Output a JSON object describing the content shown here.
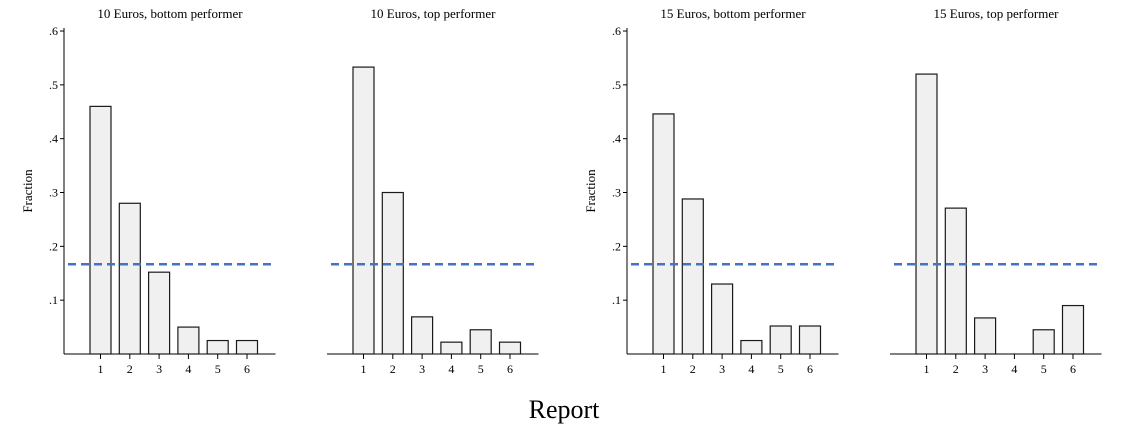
{
  "figure": {
    "xlabel": "Report",
    "reference_color": "#4472c4"
  },
  "chart_data": [
    {
      "type": "bar",
      "title": "10 Euros, bottom performer",
      "categories": [
        "1",
        "2",
        "3",
        "4",
        "5",
        "6"
      ],
      "values": [
        0.46,
        0.28,
        0.152,
        0.05,
        0.025,
        0.025
      ],
      "ylabel": "Fraction",
      "show_y_axis": true,
      "yticks": [
        ".1",
        ".2",
        ".3",
        ".4",
        ".5",
        ".6"
      ],
      "ylim": [
        0,
        0.6
      ],
      "reference_line": 0.1667
    },
    {
      "type": "bar",
      "title": "10 Euros, top performer",
      "categories": [
        "1",
        "2",
        "3",
        "4",
        "5",
        "6"
      ],
      "values": [
        0.533,
        0.3,
        0.069,
        0.022,
        0.045,
        0.022
      ],
      "ylabel": "",
      "show_y_axis": false,
      "yticks": [],
      "ylim": [
        0,
        0.6
      ],
      "reference_line": 0.1667
    },
    {
      "type": "bar",
      "title": "15 Euros, bottom performer",
      "categories": [
        "1",
        "2",
        "3",
        "4",
        "5",
        "6"
      ],
      "values": [
        0.446,
        0.288,
        0.13,
        0.025,
        0.052,
        0.052
      ],
      "ylabel": "Fraction",
      "show_y_axis": true,
      "yticks": [
        ".1",
        ".2",
        ".3",
        ".4",
        ".5",
        ".6"
      ],
      "ylim": [
        0,
        0.6
      ],
      "reference_line": 0.1667
    },
    {
      "type": "bar",
      "title": "15 Euros, top performer",
      "categories": [
        "1",
        "2",
        "3",
        "4",
        "5",
        "6"
      ],
      "values": [
        0.52,
        0.271,
        0.067,
        0,
        0.045,
        0.09
      ],
      "ylabel": "",
      "show_y_axis": false,
      "yticks": [],
      "ylim": [
        0,
        0.6
      ],
      "reference_line": 0.1667
    }
  ]
}
